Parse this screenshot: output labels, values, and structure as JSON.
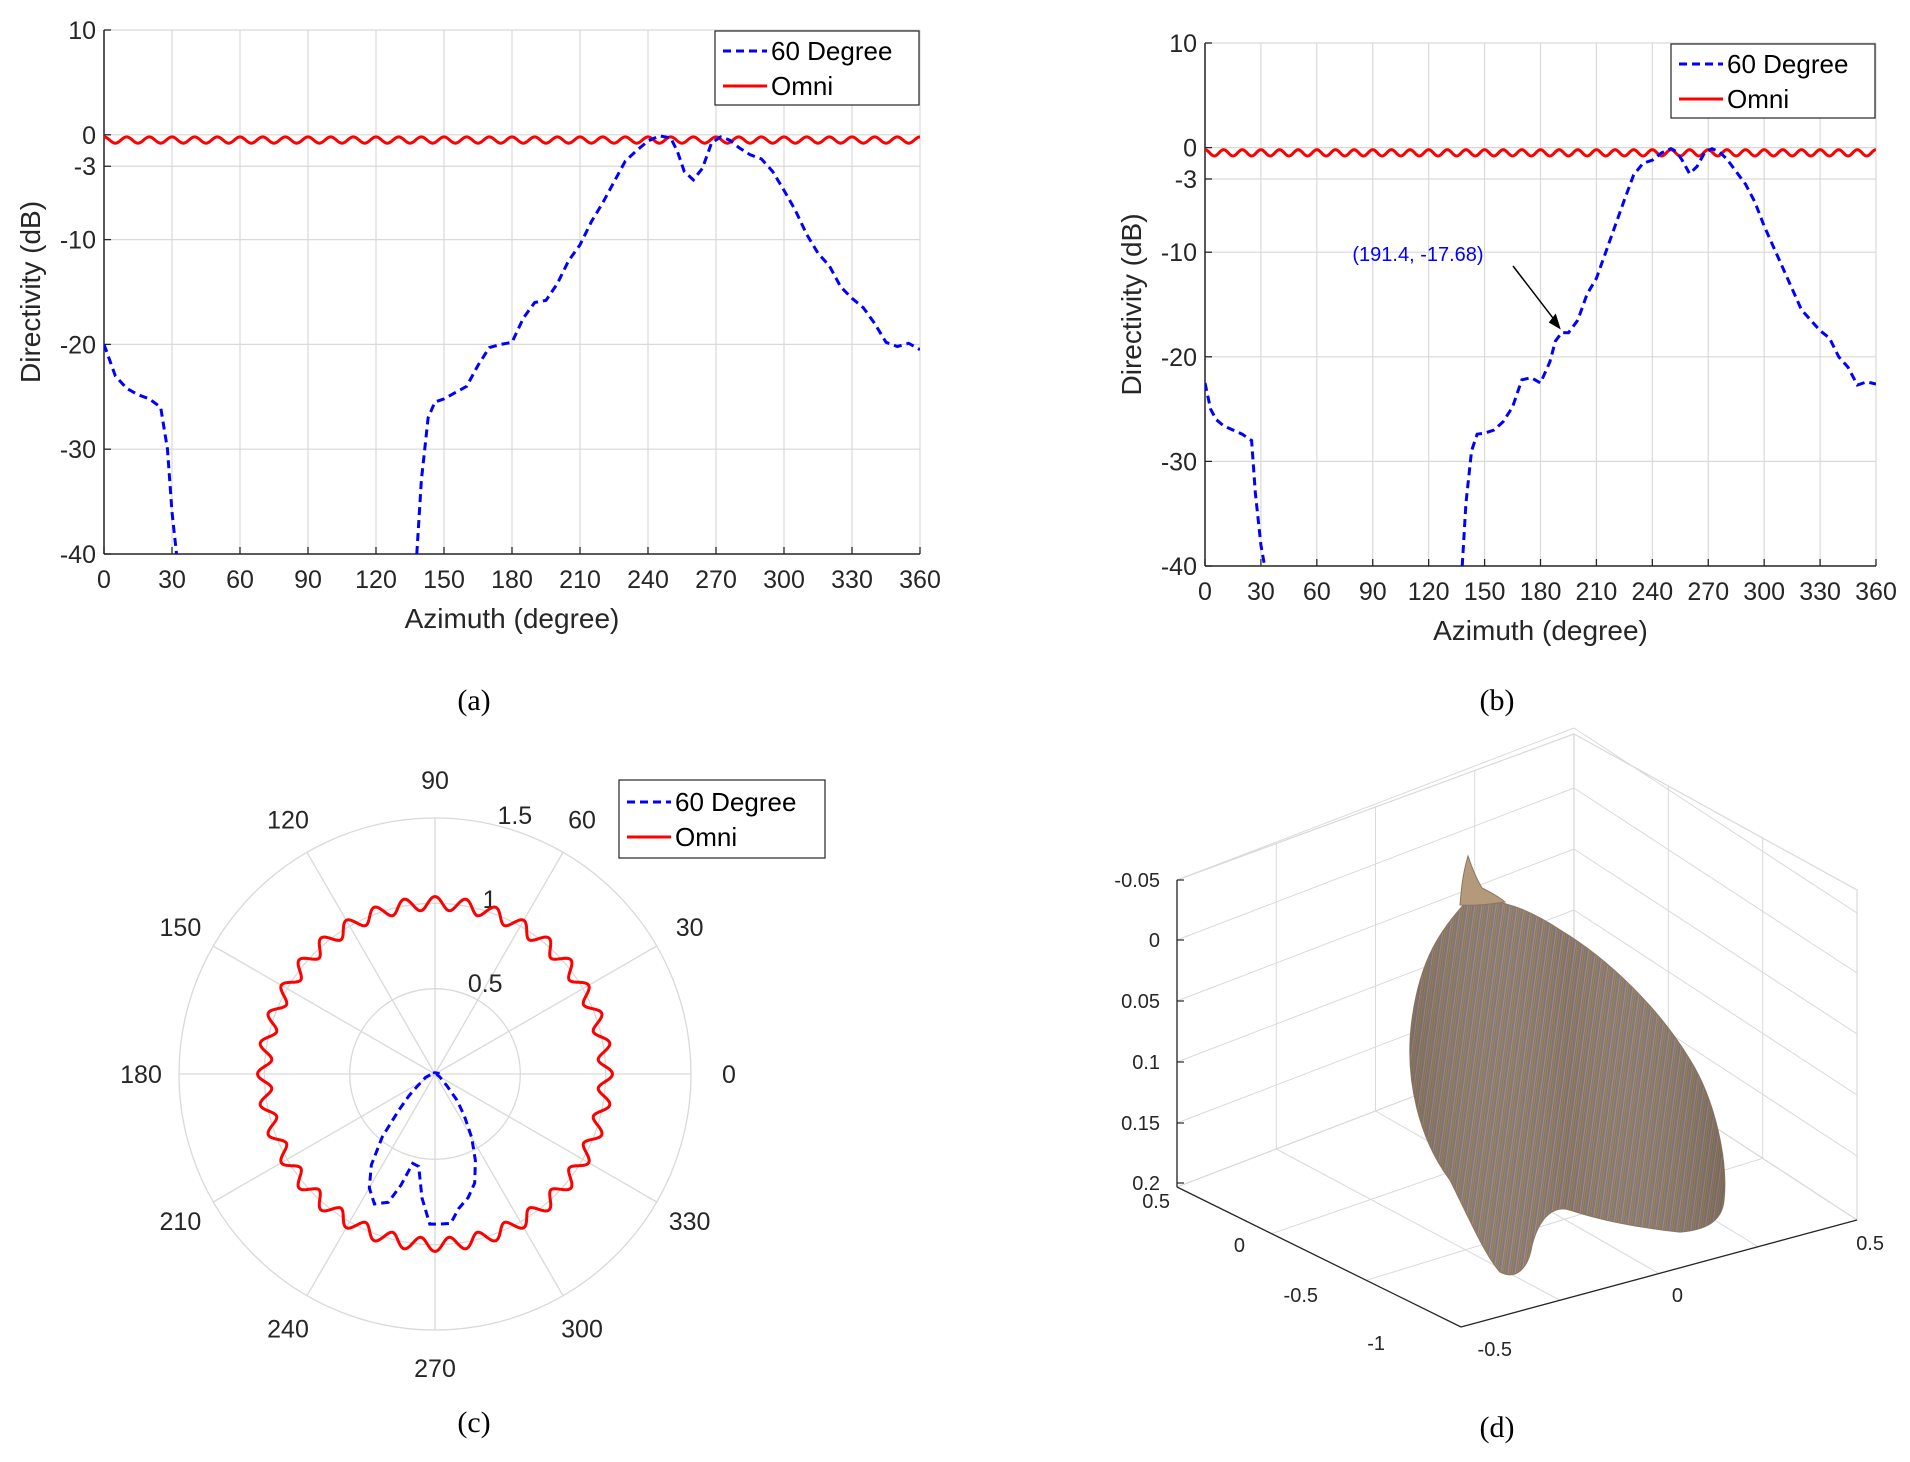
{
  "legend": {
    "series1": "60 Degree",
    "series2": "Omni"
  },
  "captions": {
    "a": "(a)",
    "b": "(b)",
    "c": "(c)",
    "d": "(d)"
  },
  "annotation_b": "(191.4, -17.68)",
  "colors": {
    "directional": "#0000ff",
    "omni": "#ff0000",
    "grid": "#d9d9d9",
    "axis": "#262626"
  },
  "chart_data": [
    {
      "id": "a",
      "type": "line",
      "xlabel": "Azimuth (degree)",
      "ylabel": "Directivity (dB)",
      "xlim": [
        0,
        360
      ],
      "ylim": [
        -40,
        10
      ],
      "xticks": [
        0,
        30,
        60,
        90,
        120,
        150,
        180,
        210,
        240,
        270,
        300,
        330,
        360
      ],
      "yticks": [
        10,
        0,
        -3,
        -10,
        -20,
        -30,
        -40
      ],
      "grid": true,
      "legend_position": "top-right",
      "series": [
        {
          "name": "60 Degree",
          "style": "dashed",
          "x": [
            0,
            5,
            10,
            15,
            20,
            25,
            28,
            30,
            32,
            138,
            140,
            143,
            146,
            150,
            155,
            160,
            165,
            170,
            175,
            180,
            185,
            190,
            195,
            200,
            205,
            210,
            215,
            220,
            225,
            230,
            235,
            240,
            245,
            250,
            253,
            256,
            260,
            264,
            268,
            272,
            276,
            280,
            285,
            290,
            295,
            300,
            305,
            310,
            315,
            320,
            325,
            330,
            335,
            340,
            345,
            350,
            355,
            360
          ],
          "y": [
            -20,
            -23,
            -24.2,
            -24.8,
            -25.2,
            -26,
            -30,
            -36,
            -40,
            -40,
            -33,
            -27,
            -25.5,
            -25.2,
            -24.6,
            -24,
            -22,
            -20.3,
            -20,
            -19.8,
            -17.5,
            -16,
            -15.8,
            -14.2,
            -12,
            -10.5,
            -8.3,
            -6.5,
            -4.5,
            -2.5,
            -1.5,
            -0.6,
            -0.1,
            -0.3,
            -1.6,
            -3.5,
            -4.3,
            -3.2,
            -0.8,
            -0.2,
            -0.5,
            -1.2,
            -1.9,
            -2.3,
            -3.5,
            -5.3,
            -7.2,
            -9.5,
            -11.3,
            -12.5,
            -14.5,
            -15.6,
            -16.5,
            -18,
            -19.8,
            -20.2,
            -19.9,
            -20.5
          ]
        },
        {
          "name": "Omni",
          "style": "solid",
          "mean": -0.5,
          "ripple": 0.3,
          "cycles": 36
        }
      ]
    },
    {
      "id": "b",
      "type": "line",
      "xlabel": "Azimuth (degree)",
      "ylabel": "Directivity (dB)",
      "xlim": [
        0,
        360
      ],
      "ylim": [
        -40,
        10
      ],
      "xticks": [
        0,
        30,
        60,
        90,
        120,
        150,
        180,
        210,
        240,
        270,
        300,
        330,
        360
      ],
      "yticks": [
        10,
        0,
        -3,
        -10,
        -20,
        -30,
        -40
      ],
      "grid": true,
      "legend_position": "top-right",
      "series": [
        {
          "name": "60 Degree",
          "style": "dashed",
          "x": [
            0,
            3,
            6,
            10,
            15,
            20,
            25,
            27,
            30,
            32,
            138,
            140,
            143,
            146,
            150,
            155,
            160,
            165,
            170,
            175,
            180,
            185,
            188,
            191.4,
            195,
            200,
            205,
            210,
            215,
            220,
            225,
            230,
            235,
            240,
            245,
            250,
            253,
            256,
            260,
            264,
            268,
            272,
            276,
            280,
            285,
            290,
            295,
            300,
            305,
            310,
            315,
            320,
            325,
            330,
            335,
            340,
            345,
            350,
            355,
            360
          ],
          "y": [
            -22.5,
            -25,
            -26,
            -26.6,
            -27,
            -27.4,
            -28,
            -33,
            -38,
            -40,
            -40,
            -34,
            -29,
            -27.4,
            -27.3,
            -27,
            -26.2,
            -24.8,
            -22.2,
            -22,
            -22.5,
            -20.5,
            -18.5,
            -17.68,
            -17.7,
            -16.5,
            -14,
            -12.5,
            -10,
            -7.5,
            -5,
            -2.6,
            -1.5,
            -1.2,
            -0.5,
            -0.1,
            -0.4,
            -1.2,
            -2.5,
            -1.8,
            -0.5,
            -0.1,
            -0.4,
            -1.1,
            -2.3,
            -3.5,
            -5.2,
            -7.5,
            -9.5,
            -11.5,
            -13.5,
            -15.5,
            -16.5,
            -17.5,
            -18.2,
            -20,
            -21,
            -22.7,
            -22.4,
            -22.6
          ]
        },
        {
          "name": "Omni",
          "style": "solid",
          "mean": -0.5,
          "ripple": 0.3,
          "cycles": 36
        }
      ]
    },
    {
      "id": "c",
      "type": "polar",
      "rlim": [
        0,
        1.5
      ],
      "rticks": [
        0.5,
        1,
        1.5
      ],
      "theta_ticks": [
        0,
        30,
        60,
        90,
        120,
        150,
        180,
        210,
        240,
        270,
        300,
        330
      ],
      "legend_position": "top-right",
      "series": [
        {
          "name": "60 Degree",
          "style": "dashed",
          "theta": [
            0,
            10,
            20,
            30,
            40,
            45,
            50,
            60,
            90,
            120,
            130,
            135,
            140,
            150,
            160,
            170,
            180,
            190,
            200,
            210,
            215,
            220,
            225,
            230,
            235,
            240,
            245,
            250,
            253,
            256,
            260,
            264,
            268,
            272,
            276,
            280,
            285,
            290,
            295,
            300,
            305,
            310,
            315,
            320,
            325,
            330,
            340,
            350,
            360
          ],
          "r": [
            0.02,
            0.02,
            0.015,
            0.01,
            0.008,
            0.0,
            0.006,
            0.008,
            0.008,
            0.008,
            0.006,
            0.004,
            0.006,
            0.009,
            0.012,
            0.02,
            0.02,
            0.03,
            0.06,
            0.09,
            0.13,
            0.2,
            0.3,
            0.48,
            0.65,
            0.77,
            0.84,
            0.8,
            0.68,
            0.54,
            0.55,
            0.73,
            0.88,
            0.88,
            0.88,
            0.8,
            0.75,
            0.68,
            0.56,
            0.43,
            0.3,
            0.2,
            0.1,
            0.06,
            0.04,
            0.03,
            0.015,
            0.015,
            0.02
          ]
        },
        {
          "name": "Omni",
          "style": "solid",
          "mean": 1.0,
          "ripple": 0.04,
          "cycles": 36
        }
      ]
    },
    {
      "id": "d",
      "type": "surface3d",
      "vertical_ticks": [
        "-0.05",
        "0",
        "0.05",
        "0.1",
        "0.15",
        "0.2"
      ],
      "left_axis_ticks": [
        "0.5",
        "0",
        "-0.5",
        "-1"
      ],
      "right_axis_ticks": [
        "-0.5",
        "0",
        "0.5"
      ],
      "grid": true
    }
  ]
}
